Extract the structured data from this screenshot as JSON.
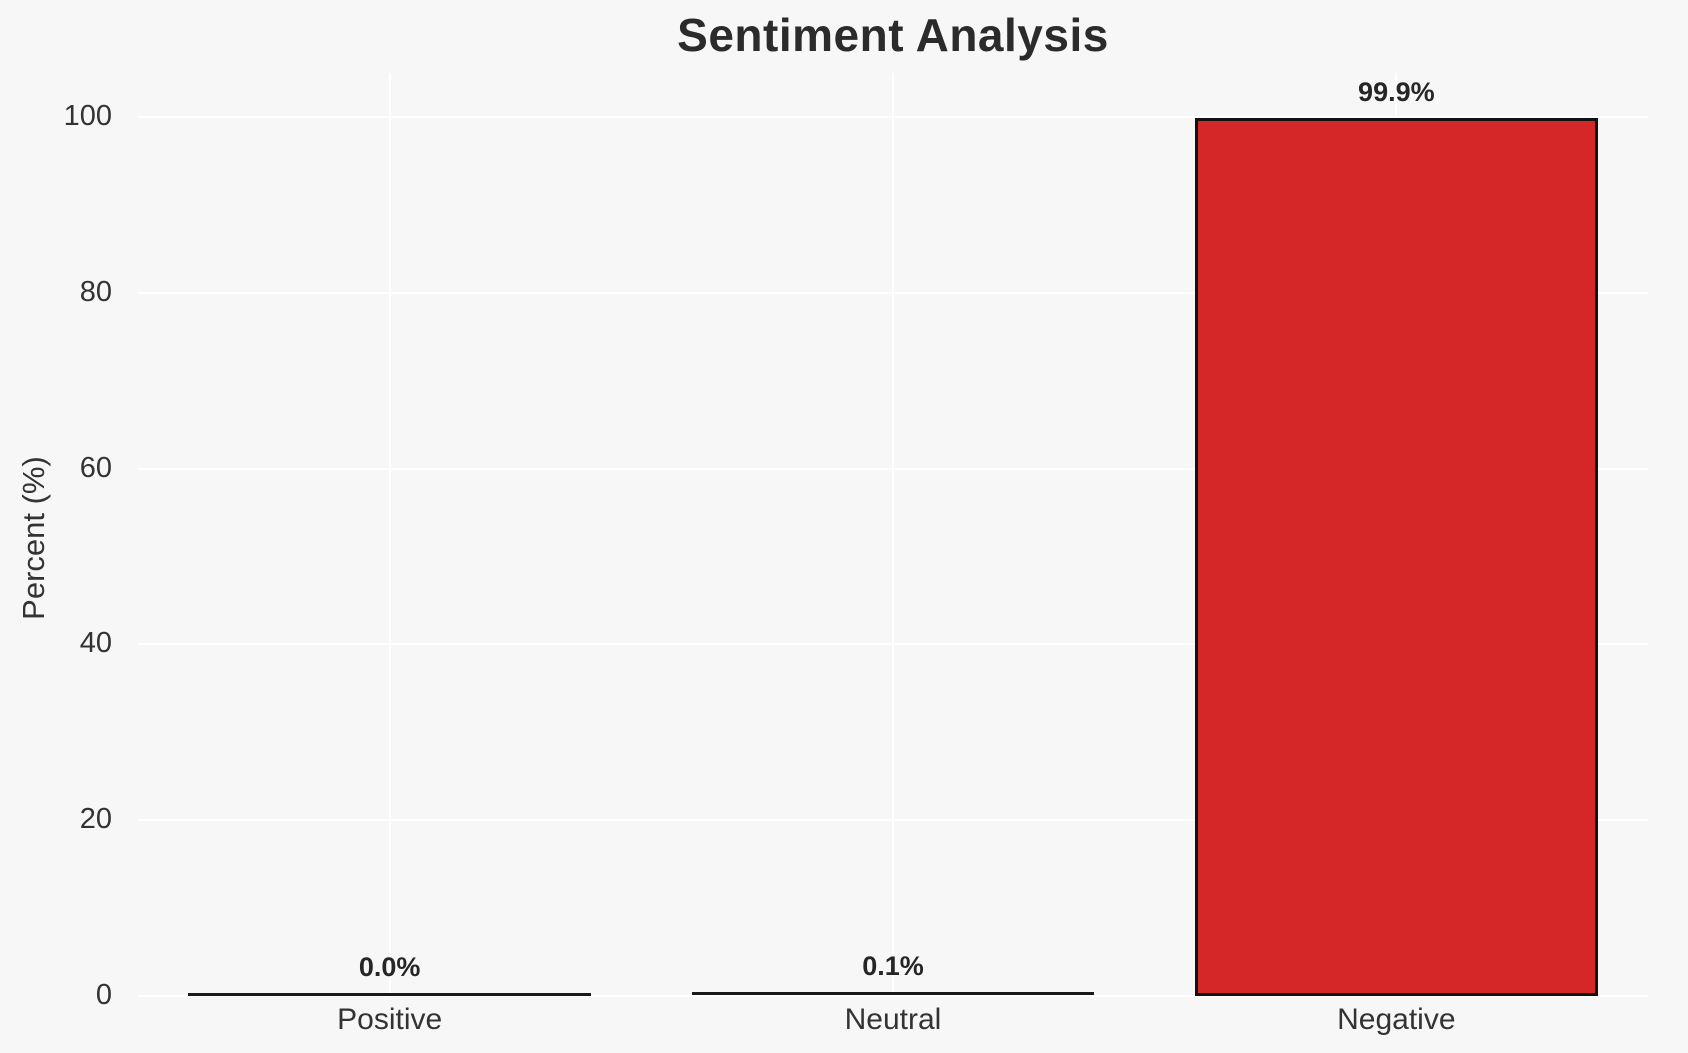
{
  "chart_data": {
    "type": "bar",
    "title": "Sentiment Analysis",
    "xlabel": "",
    "ylabel": "Percent (%)",
    "categories": [
      "Positive",
      "Neutral",
      "Negative"
    ],
    "values": [
      0.0,
      0.1,
      99.9
    ],
    "value_labels": [
      "0.0%",
      "0.1%",
      "99.9%"
    ],
    "yticks": [
      0,
      20,
      40,
      60,
      80,
      100
    ],
    "ylim": [
      0,
      105
    ],
    "grid": true,
    "legend": false,
    "colors": {
      "negative_bar_fill": "#d62728",
      "bar_edge": "#111111",
      "background": "#f7f7f7",
      "gridline": "#ffffff",
      "text": "#333333",
      "title_text": "#2b2b2b"
    }
  }
}
